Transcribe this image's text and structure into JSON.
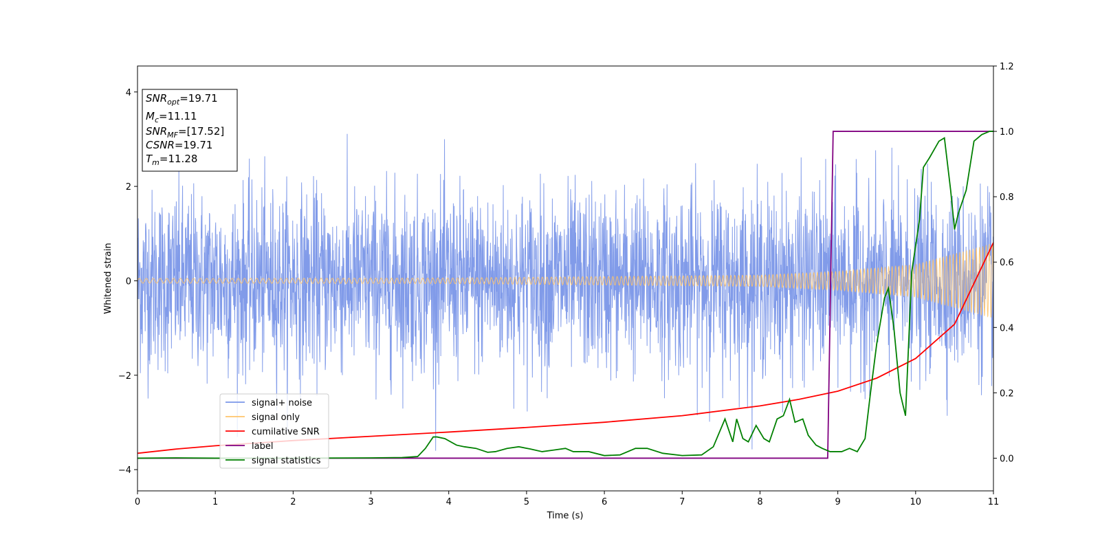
{
  "chart_data": {
    "type": "line",
    "xlabel": "Time (s)",
    "ylabel": "Whitened strain",
    "xlim": [
      0,
      11
    ],
    "ylim": [
      -4.45,
      4.55
    ],
    "y2lim": [
      -0.1,
      1.2
    ],
    "grid": false,
    "legend_placement": "lower-left",
    "x_ticks": [
      0,
      1,
      2,
      3,
      4,
      5,
      6,
      7,
      8,
      9,
      10,
      11
    ],
    "y_ticks": [
      -4,
      -2,
      0,
      2,
      4
    ],
    "y2_ticks": [
      0.0,
      0.2,
      0.4,
      0.6,
      0.8,
      1.0,
      1.2
    ],
    "y2_tick_labels": [
      "0.0",
      "0.2",
      "0.4",
      "0.6",
      "0.8",
      "1.0",
      "1.2"
    ],
    "annotation": [
      {
        "base": "SNR",
        "sub": "opt",
        "value": "=19.71"
      },
      {
        "base": "M",
        "sub": "c",
        "value": "=11.11"
      },
      {
        "base": "SNR",
        "sub": "MF",
        "value": "=[17.52]"
      },
      {
        "base": "CSNR",
        "sub": "",
        "value": "=19.71"
      },
      {
        "base": "T",
        "sub": "m",
        "value": "=11.28"
      }
    ],
    "series": [
      {
        "name": "signal+ noise",
        "axis": "left",
        "color": "#7a96e8",
        "note": "dense noisy strain, amplitude mostly within about ±2.4, peaks near ±3.5",
        "envelope": {
          "x": [
            0,
            11
          ],
          "typical_amplitude": 2.0,
          "max_amplitude": 3.6
        }
      },
      {
        "name": "signal only",
        "axis": "left",
        "color": "#ffc46b",
        "note": "chirp oscillation with growing amplitude",
        "amplitude": {
          "x": [
            0,
            4,
            8,
            9,
            10,
            11
          ],
          "y": [
            0.05,
            0.06,
            0.12,
            0.2,
            0.35,
            0.8
          ]
        }
      },
      {
        "name": "cumilative SNR",
        "axis": "right",
        "color": "#ff0000",
        "x": [
          0,
          0.5,
          1,
          2,
          3,
          4,
          5,
          6,
          7,
          8,
          8.5,
          9,
          9.5,
          10,
          10.5,
          11
        ],
        "y": [
          0.015,
          0.028,
          0.038,
          0.054,
          0.067,
          0.08,
          0.094,
          0.11,
          0.13,
          0.16,
          0.18,
          0.205,
          0.245,
          0.305,
          0.41,
          0.66
        ]
      },
      {
        "name": "label",
        "axis": "right",
        "color": "#800080",
        "x": [
          0,
          8.87,
          8.94,
          11
        ],
        "y": [
          0.0,
          0.0,
          1.0,
          1.0
        ]
      },
      {
        "name": "signal statistics",
        "axis": "right",
        "color": "#008000",
        "x": [
          0,
          0.5,
          1,
          2,
          3,
          3.4,
          3.6,
          3.7,
          3.8,
          3.85,
          3.95,
          4.1,
          4.2,
          4.35,
          4.5,
          4.6,
          4.75,
          4.9,
          5.05,
          5.2,
          5.35,
          5.5,
          5.6,
          5.8,
          6,
          6.2,
          6.4,
          6.55,
          6.75,
          7,
          7.25,
          7.4,
          7.55,
          7.65,
          7.7,
          7.78,
          7.85,
          7.95,
          8.05,
          8.12,
          8.22,
          8.3,
          8.38,
          8.45,
          8.55,
          8.62,
          8.72,
          8.8,
          8.9,
          9.05,
          9.15,
          9.25,
          9.35,
          9.42,
          9.5,
          9.6,
          9.65,
          9.72,
          9.8,
          9.87,
          9.95,
          10.05,
          10.1,
          10.18,
          10.3,
          10.37,
          10.45,
          10.5,
          10.55,
          10.65,
          10.75,
          10.85,
          10.95,
          11
        ],
        "y": [
          0.0,
          0.001,
          0.0,
          0.0,
          0.001,
          0.002,
          0.005,
          0.03,
          0.065,
          0.065,
          0.06,
          0.04,
          0.035,
          0.03,
          0.018,
          0.02,
          0.03,
          0.035,
          0.028,
          0.02,
          0.025,
          0.03,
          0.02,
          0.02,
          0.008,
          0.01,
          0.03,
          0.03,
          0.015,
          0.008,
          0.01,
          0.035,
          0.12,
          0.05,
          0.12,
          0.06,
          0.05,
          0.1,
          0.06,
          0.05,
          0.12,
          0.13,
          0.18,
          0.11,
          0.12,
          0.07,
          0.04,
          0.03,
          0.02,
          0.02,
          0.03,
          0.02,
          0.06,
          0.2,
          0.35,
          0.49,
          0.52,
          0.4,
          0.2,
          0.13,
          0.57,
          0.73,
          0.89,
          0.92,
          0.97,
          0.98,
          0.82,
          0.7,
          0.75,
          0.82,
          0.97,
          0.99,
          1.0,
          1.0
        ]
      }
    ]
  }
}
